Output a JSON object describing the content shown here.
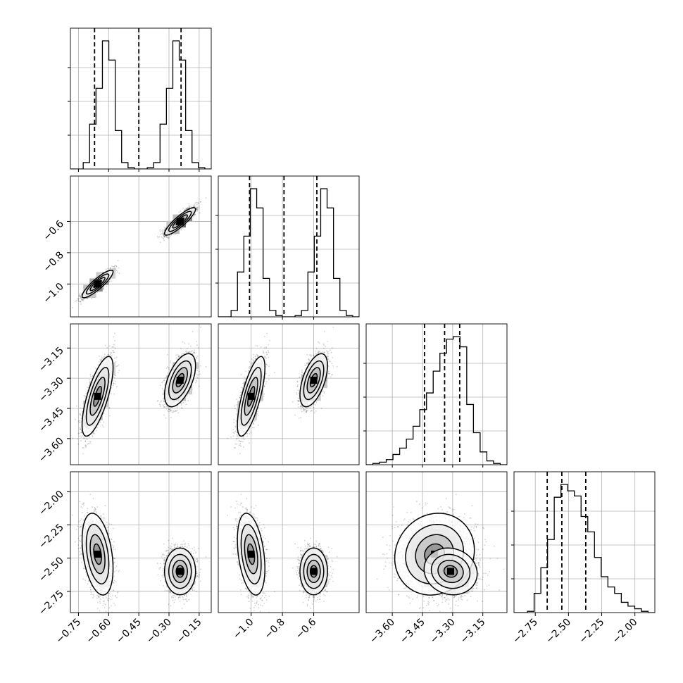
{
  "chart_data": {
    "type": "corner",
    "seed": 7,
    "grid": true,
    "style": {
      "hist_color": "#000000",
      "quantile_line": "dashed",
      "scatter_color": "#000000",
      "contour_color": "#000000",
      "background": "#ffffff",
      "grid_color": "#b0b0b0"
    },
    "variables": [
      {
        "range": [
          -0.79,
          -0.09
        ],
        "ticks": [
          -0.75,
          -0.6,
          -0.45,
          -0.3,
          -0.15
        ],
        "tick_labels": [
          "−0.75",
          "−0.60",
          "−0.45",
          "−0.30",
          "−0.15"
        ],
        "quantiles": [
          -0.67,
          -0.45,
          -0.24
        ],
        "hist": [
          0.0,
          0.0,
          0.05,
          0.35,
          0.63,
          1.0,
          0.85,
          0.3,
          0.05,
          0.01,
          0.0,
          0.0,
          0.01,
          0.05,
          0.35,
          0.63,
          1.0,
          0.85,
          0.3,
          0.05,
          0.01,
          0.0
        ]
      },
      {
        "range": [
          -1.21,
          -0.31
        ],
        "ticks": [
          -1.0,
          -0.8,
          -0.6
        ],
        "tick_labels": [
          "−1.0",
          "−0.8",
          "−0.6"
        ],
        "quantiles": [
          -1.01,
          -0.79,
          -0.58
        ],
        "hist": [
          0.0,
          0.0,
          0.05,
          0.35,
          0.63,
          1.0,
          0.85,
          0.3,
          0.05,
          0.01,
          0.0,
          0.0,
          0.01,
          0.05,
          0.35,
          0.63,
          1.0,
          0.85,
          0.3,
          0.05,
          0.01,
          0.0
        ]
      },
      {
        "range": [
          -3.73,
          -3.03
        ],
        "ticks": [
          -3.6,
          -3.45,
          -3.3,
          -3.15
        ],
        "tick_labels": [
          "−3.60",
          "−3.45",
          "−3.30",
          "−3.15"
        ],
        "quantiles": [
          -3.44,
          -3.34,
          -3.265
        ],
        "hist": [
          0.0,
          0.01,
          0.02,
          0.04,
          0.08,
          0.13,
          0.2,
          0.3,
          0.43,
          0.56,
          0.73,
          0.87,
          0.98,
          1.0,
          0.92,
          0.47,
          0.25,
          0.1,
          0.03,
          0.01,
          0.0
        ]
      },
      {
        "range": [
          -2.91,
          -1.85
        ],
        "ticks": [
          -2.75,
          -2.5,
          -2.25,
          -2.0
        ],
        "tick_labels": [
          "−2.75",
          "−2.50",
          "−2.25",
          "−2.00"
        ],
        "quantiles": [
          -2.66,
          -2.55,
          -2.37
        ],
        "hist": [
          0.0,
          0.0,
          0.01,
          0.15,
          0.35,
          0.57,
          0.9,
          1.0,
          0.95,
          0.91,
          0.75,
          0.63,
          0.43,
          0.28,
          0.2,
          0.15,
          0.08,
          0.05,
          0.03,
          0.01,
          0.0
        ]
      }
    ],
    "ticks_2d": {
      "y_row1": {
        "ticks": [
          -0.6,
          -0.8,
          -1.0
        ],
        "labels": [
          "−0.6",
          "−0.8",
          "−1.0"
        ]
      },
      "y_row2": {
        "ticks": [
          -3.15,
          -3.3,
          -3.45,
          -3.6
        ],
        "labels": [
          "−3.15",
          "−3.30",
          "−3.45",
          "−3.60"
        ]
      },
      "y_row3": {
        "ticks": [
          -2.0,
          -2.25,
          -2.5,
          -2.75
        ],
        "labels": [
          "−2.00",
          "−2.25",
          "−2.50",
          "−2.75"
        ]
      }
    },
    "clusters": [
      {
        "weight": 0.5,
        "mean": [
          -0.655,
          -1.0,
          -3.39,
          -2.47
        ],
        "std": [
          0.035,
          0.04,
          0.09,
          0.14
        ],
        "corr_01": 0.88,
        "corr_02": 0.72,
        "corr_12": 0.72,
        "corr_03": -0.35,
        "corr_13": -0.35,
        "corr_23": 0.1
      },
      {
        "weight": 0.5,
        "mean": [
          -0.245,
          -0.6,
          -3.31,
          -2.6
        ],
        "std": [
          0.035,
          0.04,
          0.06,
          0.08
        ],
        "corr_01": 0.88,
        "corr_02": 0.55,
        "corr_12": 0.55,
        "corr_03": 0.0,
        "corr_13": 0.0,
        "corr_23": -0.1
      }
    ]
  }
}
